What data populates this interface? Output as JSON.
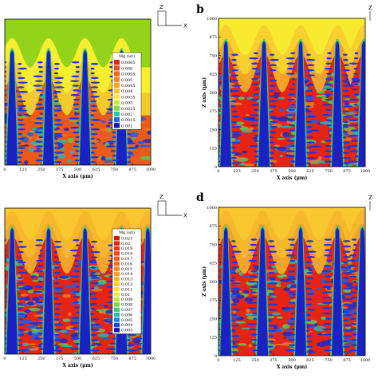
{
  "chart_data": [
    {
      "type": "heatmap",
      "panel": "",
      "xlabel": "X axis (μm)",
      "ylabel": "",
      "x_ticks": [
        "0",
        "125",
        "250",
        "375",
        "500",
        "625",
        "750",
        "875",
        "1000"
      ],
      "y_ticks": [],
      "xlim": [
        0,
        1000
      ],
      "ylim": [
        0,
        1000
      ],
      "legend": {
        "title": "Mg (wt)",
        "levels": [
          "0.0065",
          "0.006",
          "0.0055",
          "0.005",
          "0.0045",
          "0.004",
          "0.0035",
          "0.003",
          "0.0025",
          "0.002",
          "0.0015",
          "0.001"
        ],
        "colors": [
          "#d92b1c",
          "#ea4a1c",
          "#f06418",
          "#f58424",
          "#f8a32a",
          "#f8c82e",
          "#fde94b",
          "#c9ef3b",
          "#83dc3c",
          "#27c8a8",
          "#1f6fe0",
          "#1414b4"
        ]
      },
      "dendrite_x": [
        50,
        300,
        550,
        800
      ],
      "tip_depth": 0.42,
      "base_color": "#eb5a18",
      "melt_color": "#93d41a",
      "gradient": [
        "#f4cb2a",
        "#f8ee30"
      ],
      "solid_color": "#e01a13"
    },
    {
      "type": "heatmap",
      "panel": "(b)",
      "xlabel": "X axis (μm)",
      "ylabel": "Z axis (μm)",
      "x_ticks": [
        "0",
        "125",
        "250",
        "375",
        "500",
        "625",
        "750",
        "875",
        "1000"
      ],
      "y_ticks": [
        "0",
        "125",
        "250",
        "375",
        "500",
        "625",
        "750",
        "875",
        "1000"
      ],
      "xlim": [
        0,
        1000
      ],
      "ylim": [
        0,
        1000
      ],
      "legend": null,
      "dendrite_x": [
        50,
        310,
        560,
        810,
        990
      ],
      "tip_depth": 0.25,
      "base_color": "#e72413",
      "melt_color": "#f8ea2e",
      "gradient": [
        "#f5a42a",
        "#f8d12e"
      ],
      "solid_color": "#e01a13"
    },
    {
      "type": "heatmap",
      "panel": "",
      "xlabel": "X axis (μm)",
      "ylabel": "",
      "x_ticks": [
        "0",
        "125",
        "250",
        "375",
        "500",
        "625",
        "750",
        "875",
        "1000"
      ],
      "y_ticks": [],
      "xlim": [
        0,
        1000
      ],
      "ylim": [
        0,
        1000
      ],
      "legend": {
        "title": "Mg (wt)",
        "levels": [
          "0.021",
          "0.02",
          "0.019",
          "0.018",
          "0.017",
          "0.016",
          "0.015",
          "0.014",
          "0.013",
          "0.012",
          "0.011",
          "0.01",
          "0.009",
          "0.008",
          "0.007",
          "0.006",
          "0.005",
          "0.004",
          "0.003"
        ],
        "colors": [
          "#d11a10",
          "#dd2512",
          "#e53315",
          "#ea4418",
          "#f05a1a",
          "#f36f1e",
          "#f68622",
          "#f89d26",
          "#f8b42a",
          "#f8cb2e",
          "#f9e234",
          "#e6ef3c",
          "#b8e83c",
          "#7fd83e",
          "#45c86a",
          "#2bb8b4",
          "#1f86e2",
          "#1a46d6",
          "#1414b0"
        ]
      },
      "dendrite_x": [
        50,
        300,
        550,
        800,
        980
      ],
      "tip_depth": 0.2,
      "base_color": "#e52412",
      "melt_color": "#f8c82e",
      "gradient": [
        "#f5a42a",
        "#f8b82c"
      ],
      "solid_color": "#e01a13"
    },
    {
      "type": "heatmap",
      "panel": "(d)",
      "xlabel": "X axis (μm)",
      "ylabel": "Z axis (μm)",
      "x_ticks": [
        "0",
        "125",
        "250",
        "375",
        "500",
        "625",
        "750",
        "875",
        "1000"
      ],
      "y_ticks": [
        "0",
        "125",
        "250",
        "375",
        "500",
        "625",
        "750",
        "875",
        "1000"
      ],
      "xlim": [
        0,
        1000
      ],
      "ylim": [
        0,
        1000
      ],
      "legend": null,
      "dendrite_x": [
        50,
        300,
        560,
        810,
        980
      ],
      "tip_depth": 0.2,
      "base_color": "#e52412",
      "melt_color": "#f8c82e",
      "gradient": [
        "#f5a42a",
        "#f8b82c"
      ],
      "solid_color": "#e01a13"
    }
  ],
  "axis_indicator": {
    "z_label": "Z",
    "x_label": "X"
  }
}
